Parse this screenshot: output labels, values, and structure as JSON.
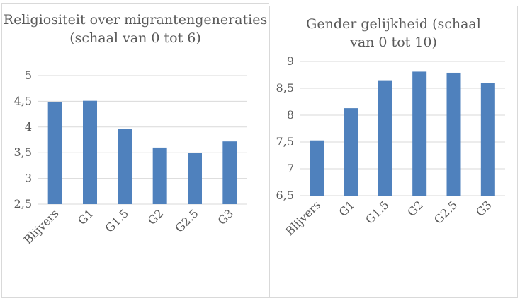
{
  "chart_data": [
    {
      "type": "bar",
      "title": "Religiositeit over migrantengeneraties (schaal van 0 tot 6)",
      "categories": [
        "Blijvers",
        "G1",
        "G1.5",
        "G2",
        "G2.5",
        "G3"
      ],
      "values": [
        4.49,
        4.51,
        3.96,
        3.6,
        3.5,
        3.72
      ],
      "ylim": [
        2.5,
        5
      ],
      "yticks": [
        "2,5",
        "3",
        "3,5",
        "4",
        "4,5",
        "5"
      ],
      "color": "#4f81bd",
      "grid": true
    },
    {
      "type": "bar",
      "title": "Gender gelijkheid (schaal van 0 tot 10)",
      "categories": [
        "Blijvers",
        "G1",
        "G1.5",
        "G2",
        "G2.5",
        "G3"
      ],
      "values": [
        7.53,
        8.13,
        8.65,
        8.81,
        8.79,
        8.6
      ],
      "ylim": [
        6.5,
        9
      ],
      "yticks": [
        "6,5",
        "7",
        "7,5",
        "8",
        "8,5",
        "9"
      ],
      "color": "#4f81bd",
      "grid": true
    }
  ]
}
